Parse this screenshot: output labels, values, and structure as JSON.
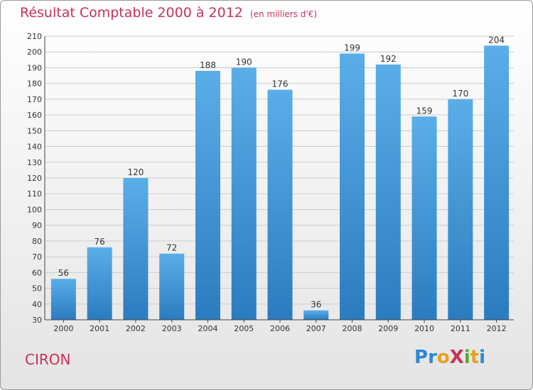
{
  "title": "Résultat Comptable 2000 à 2012",
  "subtitle": "(en milliers d'€)",
  "town": "CIRON",
  "logo": {
    "text": "ProXiti",
    "letters": [
      {
        "ch": "P",
        "color": "#2e86d4"
      },
      {
        "ch": "r",
        "color": "#2e86d4"
      },
      {
        "ch": "o",
        "color": "#e8a020"
      },
      {
        "ch": "X",
        "color": "#c8325a"
      },
      {
        "ch": "i",
        "color": "#5aa832"
      },
      {
        "ch": "t",
        "color": "#e8a020"
      },
      {
        "ch": "i",
        "color": "#2e86d4"
      }
    ]
  },
  "colors": {
    "accent": "#c8325a",
    "bar_top": "#5aaee8",
    "bar_bottom": "#2b7cbf",
    "grid": "#cccccc"
  },
  "chart_data": {
    "type": "bar",
    "title": "Résultat Comptable 2000 à 2012",
    "xlabel": "",
    "ylabel": "",
    "categories": [
      "2000",
      "2001",
      "2002",
      "2003",
      "2004",
      "2005",
      "2006",
      "2007",
      "2008",
      "2009",
      "2010",
      "2011",
      "2012"
    ],
    "values": [
      56,
      76,
      120,
      72,
      188,
      190,
      176,
      36,
      199,
      192,
      159,
      170,
      204
    ],
    "ylim": [
      30,
      210
    ],
    "yticks": [
      30,
      40,
      50,
      60,
      70,
      80,
      90,
      100,
      110,
      120,
      130,
      140,
      150,
      160,
      170,
      180,
      190,
      200,
      210
    ],
    "grid": true
  }
}
